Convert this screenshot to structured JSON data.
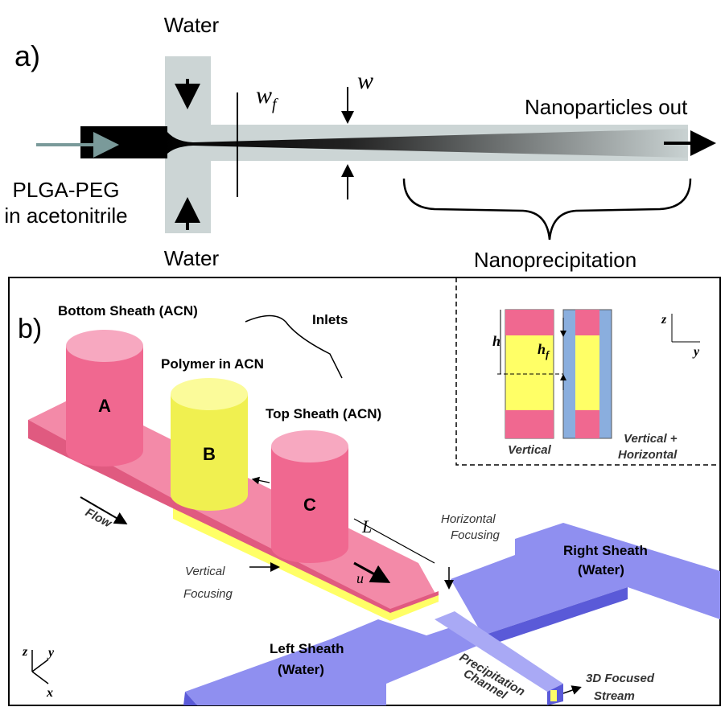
{
  "panel_a": {
    "label": "a)",
    "water_top": "Water",
    "water_bottom": "Water",
    "wf": {
      "main": "w",
      "sub": "f"
    },
    "w": "w",
    "outlet": "Nanoparticles out",
    "inlet": [
      "PLGA-PEG",
      "in acetonitrile"
    ],
    "region": "Nanoprecipitation"
  },
  "panel_b": {
    "label": "b)",
    "bottom_sheath": "Bottom Sheath (ACN)",
    "inlets": "Inlets",
    "polymer": "Polymer in ACN",
    "top_sheath": "Top Sheath (ACN)",
    "cylinders": [
      "A",
      "B",
      "C"
    ],
    "flow": "Flow",
    "length": "L",
    "velocity": "u",
    "horizontal_focusing": [
      "Horizontal",
      "Focusing"
    ],
    "vertical_focusing": [
      "Vertical",
      "Focusing"
    ],
    "right_sheath": [
      "Right Sheath",
      "(Water)"
    ],
    "left_sheath": [
      "Left Sheath",
      "(Water)"
    ],
    "channel": [
      "Precipitation",
      "Channel"
    ],
    "stream": [
      "3D Focused",
      "Stream"
    ],
    "axes": [
      "z",
      "y",
      "x"
    ],
    "inset": {
      "h": "h",
      "hf": {
        "main": "h",
        "sub": "f"
      },
      "axes": [
        "z",
        "y"
      ],
      "vertical": "Vertical",
      "combined": [
        "Vertical +",
        "Horizontal"
      ]
    }
  }
}
